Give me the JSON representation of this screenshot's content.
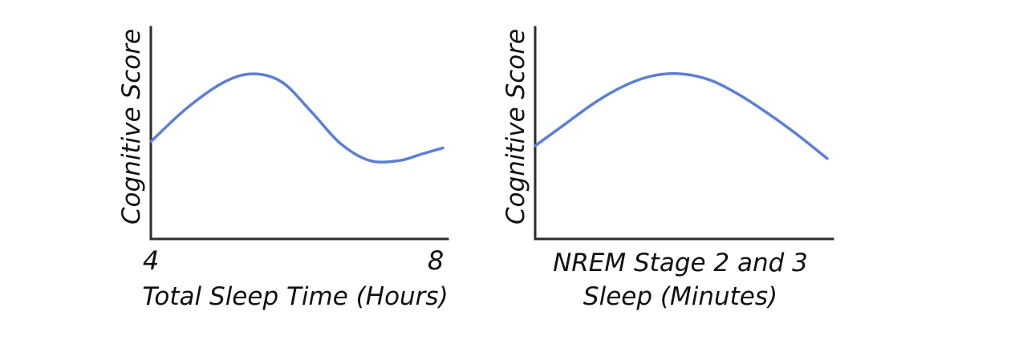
{
  "chart_data": [
    {
      "type": "line",
      "title": "",
      "xlabel": "Total Sleep Time (Hours)",
      "ylabel": "Cognitive Score",
      "x_ticks": [
        "4",
        "8"
      ],
      "xlim": [
        4,
        8
      ],
      "ylim": [
        0,
        1
      ],
      "grid": false,
      "line_color": "#5b7fd6",
      "series": [
        {
          "x": [
            4.0,
            4.5,
            5.0,
            5.4,
            5.8,
            6.2,
            6.6,
            7.0,
            7.4,
            7.7,
            8.0
          ],
          "values": [
            0.46,
            0.62,
            0.74,
            0.78,
            0.74,
            0.6,
            0.45,
            0.37,
            0.37,
            0.4,
            0.43
          ]
        }
      ]
    },
    {
      "type": "line",
      "title": "",
      "xlabel": "NREM Stage 2 and 3 Sleep (Minutes)",
      "ylabel": "Cognitive Score",
      "x_ticks": [],
      "xlim": [
        0,
        1
      ],
      "ylim": [
        0,
        1
      ],
      "grid": false,
      "line_color": "#5b7fd6",
      "series": [
        {
          "x": [
            0.0,
            0.1,
            0.2,
            0.3,
            0.4,
            0.5,
            0.6,
            0.7,
            0.8,
            0.9,
            1.0
          ],
          "values": [
            0.44,
            0.54,
            0.64,
            0.72,
            0.77,
            0.78,
            0.75,
            0.68,
            0.59,
            0.49,
            0.38
          ]
        }
      ]
    }
  ]
}
